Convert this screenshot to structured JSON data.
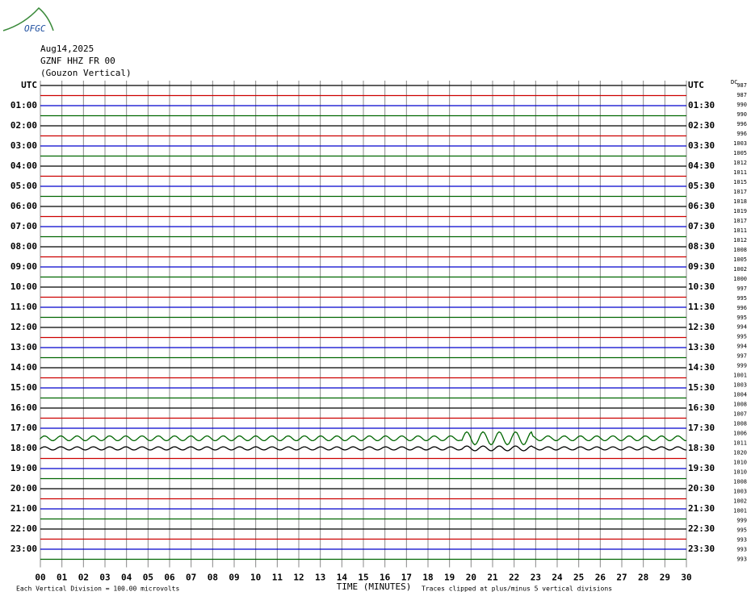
{
  "header": {
    "logo": "OFGC",
    "date": "Aug14,2025",
    "station": "GZNF HHZ FR 00",
    "location": "(Gouzon Vertical)"
  },
  "left_labels": [
    "UTC",
    "01:00",
    "02:00",
    "03:00",
    "04:00",
    "05:00",
    "06:00",
    "07:00",
    "08:00",
    "09:00",
    "10:00",
    "11:00",
    "12:00",
    "13:00",
    "14:00",
    "15:00",
    "16:00",
    "17:00",
    "18:00",
    "19:00",
    "20:00",
    "21:00",
    "22:00",
    "23:00"
  ],
  "right_labels": [
    "UTC",
    "01:30",
    "02:30",
    "03:30",
    "04:30",
    "05:30",
    "06:30",
    "07:30",
    "08:30",
    "09:30",
    "10:30",
    "11:30",
    "12:30",
    "13:30",
    "14:30",
    "15:30",
    "16:30",
    "17:30",
    "18:30",
    "19:30",
    "20:30",
    "21:30",
    "22:30",
    "23:30"
  ],
  "dc_title": "DC",
  "dc_values": [
    987,
    987,
    990,
    990,
    996,
    996,
    1003,
    1005,
    1012,
    1011,
    1015,
    1017,
    1018,
    1019,
    1017,
    1011,
    1012,
    1008,
    1005,
    1002,
    1000,
    997,
    995,
    996,
    995,
    994,
    995,
    994,
    997,
    999,
    1001,
    1003,
    1004,
    1008,
    1007,
    1008,
    1006,
    1011,
    1020,
    1010,
    1010,
    1008,
    1003,
    1002,
    1001,
    999,
    995,
    993,
    993,
    993
  ],
  "xlim": [
    0,
    30
  ],
  "xticks": [
    {
      "value": 0,
      "label": "00"
    },
    {
      "value": 1,
      "label": "01"
    },
    {
      "value": 2,
      "label": "02"
    },
    {
      "value": 3,
      "label": "03"
    },
    {
      "value": 4,
      "label": "04"
    },
    {
      "value": 5,
      "label": "05"
    },
    {
      "value": 6,
      "label": "06"
    },
    {
      "value": 7,
      "label": "07"
    },
    {
      "value": 8,
      "label": "08"
    },
    {
      "value": 9,
      "label": "09"
    },
    10,
    11,
    12,
    13,
    14,
    15,
    16,
    17,
    18,
    19,
    20,
    21,
    22,
    23,
    24,
    25,
    26,
    27,
    28,
    29,
    30
  ],
  "trace_colors": [
    "#000000",
    "#cc0000",
    "#0000cc",
    "#006600"
  ],
  "footer": {
    "left": "Each Vertical Division =  100.00 microvolts",
    "center": "TIME (MINUTES)",
    "right": "Traces clipped at plus/minus 5 vertical divisions"
  }
}
